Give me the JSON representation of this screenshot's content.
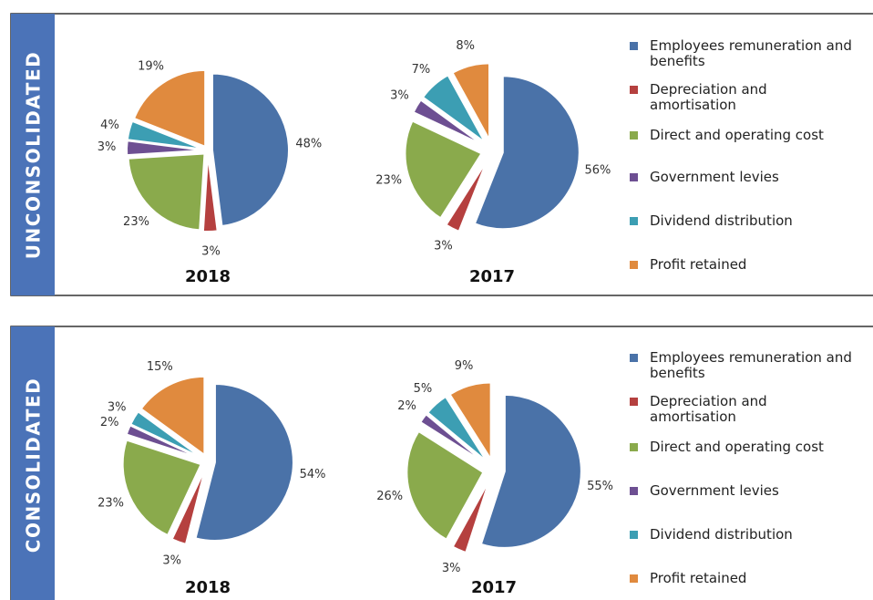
{
  "panels": [
    {
      "label": "UNCONSOLIDATED"
    },
    {
      "label": "CONSOLIDATED"
    }
  ],
  "chart_data": [
    {
      "type": "pie",
      "title": "2018",
      "categories": [
        "Employees remuneration and benefits",
        "Depreciation and amortisation",
        "Direct and operating cost",
        "Government levies",
        "Dividend distribution",
        "Profit retained"
      ],
      "values": [
        48,
        3,
        23,
        3,
        4,
        19
      ],
      "value_labels": [
        "48%",
        "3%",
        "23%",
        "3%",
        "4%",
        "19%"
      ],
      "colors": [
        "#4a72a8",
        "#b5403f",
        "#8aaa4c",
        "#6d4f92",
        "#3c9eb3",
        "#e08a3e"
      ]
    },
    {
      "type": "pie",
      "title": "2017",
      "categories": [
        "Employees remuneration and benefits",
        "Depreciation and amortisation",
        "Direct and operating cost",
        "Government levies",
        "Dividend distribution",
        "Profit retained"
      ],
      "values": [
        56,
        3,
        23,
        3,
        7,
        8
      ],
      "value_labels": [
        "56%",
        "3%",
        "23%",
        "3%",
        "7%",
        "8%"
      ],
      "colors": [
        "#4a72a8",
        "#b5403f",
        "#8aaa4c",
        "#6d4f92",
        "#3c9eb3",
        "#e08a3e"
      ]
    },
    {
      "type": "pie",
      "title": "2018",
      "categories": [
        "Employees remuneration and benefits",
        "Depreciation and amortisation",
        "Direct and operating cost",
        "Government levies",
        "Dividend distribution",
        "Profit retained"
      ],
      "values": [
        54,
        3,
        23,
        2,
        3,
        15
      ],
      "value_labels": [
        "54%",
        "3%",
        "23%",
        "2%",
        "3%",
        "15%"
      ],
      "colors": [
        "#4a72a8",
        "#b5403f",
        "#8aaa4c",
        "#6d4f92",
        "#3c9eb3",
        "#e08a3e"
      ]
    },
    {
      "type": "pie",
      "title": "2017",
      "categories": [
        "Employees remuneration and benefits",
        "Depreciation and amortisation",
        "Direct and operating cost",
        "Government levies",
        "Dividend distribution",
        "Profit retained"
      ],
      "values": [
        55,
        3,
        26,
        2,
        5,
        9
      ],
      "value_labels": [
        "55%",
        "3%",
        "26%",
        "2%",
        "5%",
        "9%"
      ],
      "colors": [
        "#4a72a8",
        "#b5403f",
        "#8aaa4c",
        "#6d4f92",
        "#3c9eb3",
        "#e08a3e"
      ]
    }
  ]
}
